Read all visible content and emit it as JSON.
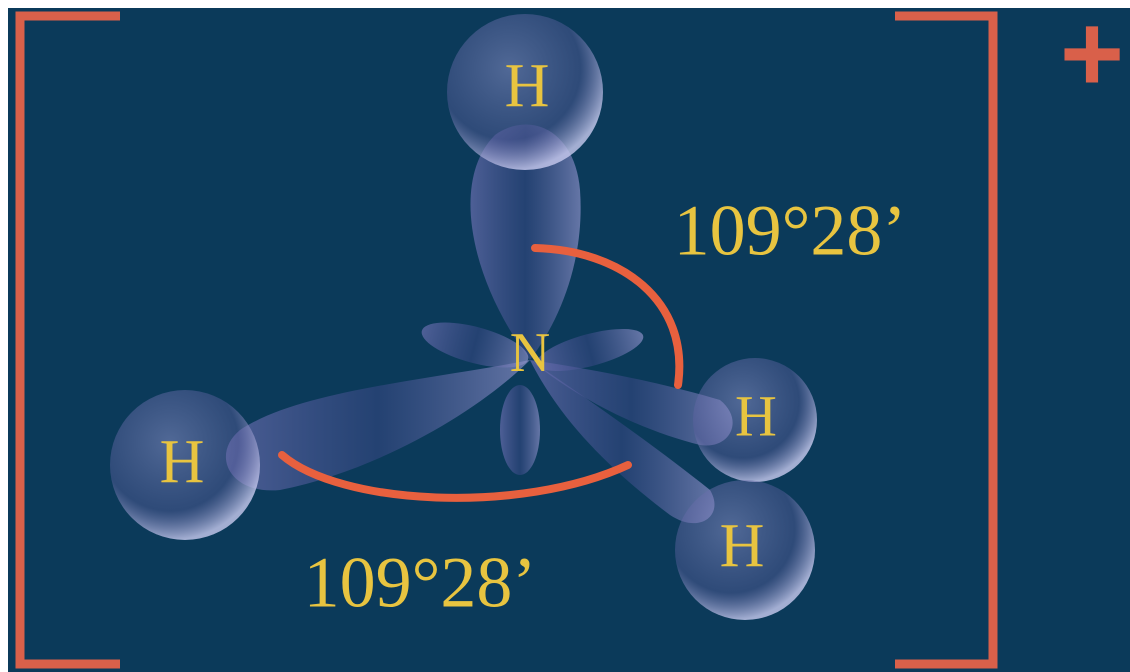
{
  "nodes": [
    {
      "label": "H"
    },
    {
      "label": "N"
    },
    {
      "label": "H"
    },
    {
      "label": "H"
    },
    {
      "label": "H"
    }
  ],
  "angles": [
    {
      "label": "109°28’"
    },
    {
      "label": "109°28’"
    }
  ],
  "charge": "+"
}
